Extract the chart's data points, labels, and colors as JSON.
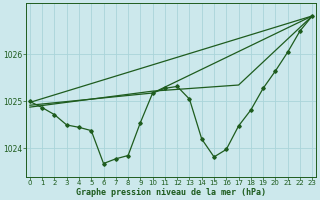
{
  "title": "Graphe pression niveau de la mer (hPa)",
  "background_color": "#cce8ec",
  "grid_color": "#aad4da",
  "line_color": "#1e5c1e",
  "x_ticks": [
    0,
    1,
    2,
    3,
    4,
    5,
    6,
    7,
    8,
    9,
    10,
    11,
    12,
    13,
    14,
    15,
    16,
    17,
    18,
    19,
    20,
    21,
    22,
    23
  ],
  "y_ticks": [
    1024,
    1025,
    1026
  ],
  "ylim": [
    1023.4,
    1027.1
  ],
  "xlim": [
    -0.3,
    23.3
  ],
  "main_y": [
    1025.0,
    1024.87,
    1024.72,
    1024.5,
    1024.45,
    1024.38,
    1023.68,
    1023.78,
    1023.85,
    1024.55,
    1025.18,
    1025.28,
    1025.32,
    1025.05,
    1024.2,
    1023.82,
    1023.98,
    1024.48,
    1024.82,
    1025.28,
    1025.65,
    1026.05,
    1026.5,
    1026.82
  ],
  "trend1_x": [
    0,
    23
  ],
  "trend1_y": [
    1024.98,
    1026.82
  ],
  "trend2_x": [
    0,
    10,
    23
  ],
  "trend2_y": [
    1024.92,
    1025.18,
    1026.82
  ],
  "trend3_x": [
    0,
    10,
    17,
    23
  ],
  "trend3_y": [
    1024.88,
    1025.22,
    1025.35,
    1026.82
  ]
}
